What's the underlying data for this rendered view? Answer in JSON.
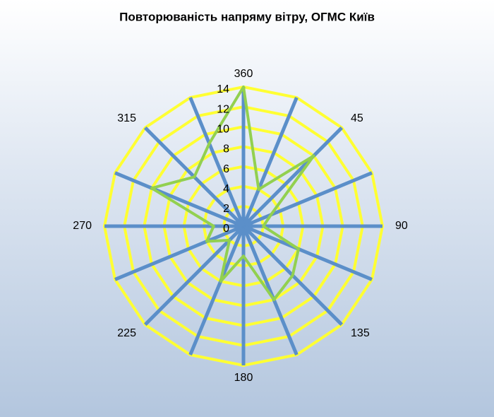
{
  "chart_data": {
    "type": "radar",
    "title": "Повторюваність напряму вітру, ОГМС Київ",
    "categories": [
      "360",
      null,
      "45",
      null,
      "90",
      null,
      "135",
      null,
      "180",
      null,
      "225",
      null,
      "270",
      null,
      "315",
      null
    ],
    "series": [
      {
        "color": "#92d050",
        "values": [
          14,
          4,
          10,
          3,
          2,
          6,
          7,
          8,
          3,
          6,
          2,
          4,
          3,
          10,
          7,
          9
        ]
      }
    ],
    "ylim": [
      0,
      14
    ],
    "yticks": [
      0,
      2,
      4,
      6,
      8,
      10,
      12,
      14
    ],
    "grid": true,
    "grid_color": "#ffff33",
    "spoke_color": "#5b8fc9"
  }
}
